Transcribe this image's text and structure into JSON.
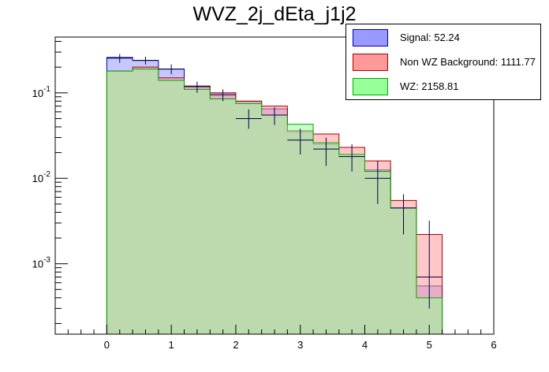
{
  "chart_data": {
    "type": "bar",
    "title": "WVZ_2j_dEta_j1j2",
    "xlabel": "",
    "ylabel": "",
    "xlim": [
      -0.8,
      6
    ],
    "ylim": [
      0.00015,
      0.45
    ],
    "yscale": "log",
    "x_ticks": [
      "0",
      "1",
      "2",
      "3",
      "4",
      "5",
      "6"
    ],
    "y_ticks": [
      {
        "base": "10",
        "exp": "-1",
        "value": 0.1
      },
      {
        "base": "10",
        "exp": "-2",
        "value": 0.01
      },
      {
        "base": "10",
        "exp": "-3",
        "value": 0.001
      }
    ],
    "bin_edges": [
      0.0,
      0.4,
      0.8,
      1.2,
      1.6,
      2.0,
      2.4,
      2.8,
      3.2,
      3.6,
      4.0,
      4.4,
      4.8,
      5.2
    ],
    "series": [
      {
        "name": "Signal: 52.24",
        "color": "#9999ff",
        "line": "#0000aa",
        "values": [
          0.26,
          0.24,
          0.19,
          0.12,
          0.1,
          0.08,
          0.065,
          0.035,
          0.025,
          0.018,
          0.0125,
          0.0045,
          0.00055
        ]
      },
      {
        "name": "Non WZ Background: 1111.77",
        "color": "#ff9999",
        "line": "#aa0000",
        "values": [
          0.18,
          0.2,
          0.15,
          0.12,
          0.1,
          0.08,
          0.07,
          0.036,
          0.033,
          0.023,
          0.016,
          0.0055,
          0.0022
        ]
      },
      {
        "name": "WZ: 2158.81",
        "color": "#99ff99",
        "line": "#00aa00",
        "values": [
          0.18,
          0.19,
          0.14,
          0.11,
          0.085,
          0.075,
          0.055,
          0.043,
          0.026,
          0.019,
          0.012,
          0.0045,
          0.0004
        ]
      }
    ],
    "data_points": [
      {
        "x": 0.2,
        "y": 0.255,
        "err": [
          0.225,
          0.285
        ]
      },
      {
        "x": 0.6,
        "y": 0.24,
        "err": [
          0.215,
          0.265
        ]
      },
      {
        "x": 1.0,
        "y": 0.19,
        "err": [
          0.165,
          0.215
        ]
      },
      {
        "x": 1.4,
        "y": 0.118,
        "err": [
          0.1,
          0.135
        ]
      },
      {
        "x": 1.8,
        "y": 0.095,
        "err": [
          0.08,
          0.11
        ]
      },
      {
        "x": 2.2,
        "y": 0.05,
        "err": [
          0.038,
          0.064
        ]
      },
      {
        "x": 2.6,
        "y": 0.055,
        "err": [
          0.042,
          0.068
        ]
      },
      {
        "x": 3.0,
        "y": 0.028,
        "err": [
          0.019,
          0.038
        ]
      },
      {
        "x": 3.4,
        "y": 0.022,
        "err": [
          0.014,
          0.03
        ]
      },
      {
        "x": 3.8,
        "y": 0.018,
        "err": [
          0.012,
          0.025
        ]
      },
      {
        "x": 4.2,
        "y": 0.01,
        "err": [
          0.005,
          0.016
        ]
      },
      {
        "x": 4.6,
        "y": 0.0045,
        "err": [
          0.0022,
          0.0065
        ]
      },
      {
        "x": 5.0,
        "y": 0.0007,
        "err": [
          0.0003,
          0.0032
        ]
      }
    ],
    "grid": false,
    "legend_position": "top-right"
  }
}
